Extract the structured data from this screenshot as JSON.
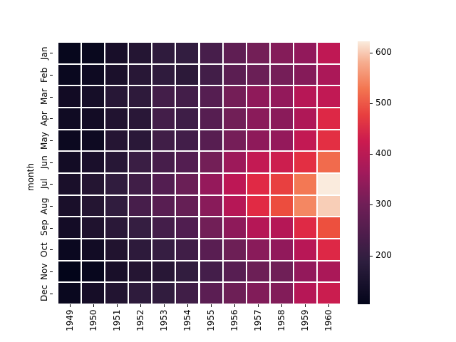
{
  "chart_data": {
    "type": "heatmap",
    "title": "",
    "xlabel": "",
    "ylabel": "month",
    "x": [
      "1949",
      "1950",
      "1951",
      "1952",
      "1953",
      "1954",
      "1955",
      "1956",
      "1957",
      "1958",
      "1959",
      "1960"
    ],
    "y": [
      "Jan",
      "Feb",
      "Mar",
      "Apr",
      "May",
      "Jun",
      "Jul",
      "Aug",
      "Sep",
      "Oct",
      "Nov",
      "Dec"
    ],
    "values": [
      [
        112,
        115,
        145,
        171,
        196,
        204,
        242,
        284,
        315,
        340,
        360,
        417
      ],
      [
        118,
        126,
        150,
        180,
        196,
        188,
        233,
        277,
        301,
        318,
        342,
        391
      ],
      [
        132,
        141,
        178,
        193,
        236,
        235,
        267,
        317,
        356,
        362,
        406,
        419
      ],
      [
        129,
        135,
        163,
        181,
        235,
        227,
        269,
        313,
        348,
        348,
        396,
        461
      ],
      [
        121,
        125,
        172,
        183,
        229,
        234,
        270,
        318,
        355,
        363,
        420,
        472
      ],
      [
        135,
        149,
        178,
        218,
        243,
        264,
        315,
        374,
        422,
        435,
        472,
        535
      ],
      [
        148,
        170,
        199,
        230,
        264,
        302,
        364,
        413,
        465,
        491,
        548,
        622
      ],
      [
        148,
        170,
        199,
        242,
        272,
        293,
        347,
        405,
        467,
        505,
        559,
        606
      ],
      [
        136,
        158,
        184,
        209,
        237,
        259,
        312,
        355,
        404,
        404,
        463,
        508
      ],
      [
        119,
        133,
        162,
        191,
        211,
        229,
        274,
        306,
        347,
        359,
        407,
        461
      ],
      [
        104,
        114,
        146,
        172,
        180,
        203,
        237,
        271,
        305,
        310,
        362,
        390
      ],
      [
        118,
        140,
        166,
        194,
        201,
        229,
        278,
        306,
        336,
        337,
        405,
        432
      ]
    ],
    "colormap": "rocket",
    "vmin": 104,
    "vmax": 622,
    "colorbar": {
      "ticks": [
        200,
        300,
        400,
        500,
        600
      ],
      "labels": [
        "200",
        "300",
        "400",
        "500",
        "600"
      ]
    },
    "linewidths": 1,
    "linecolor": "#ffffff"
  }
}
